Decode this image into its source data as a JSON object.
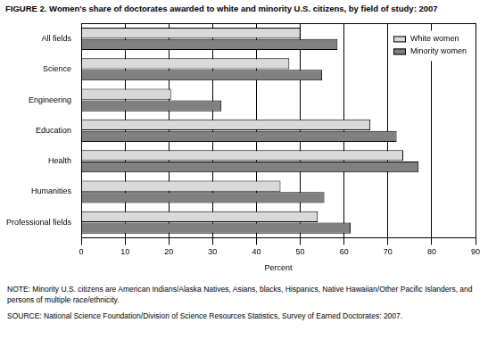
{
  "chart_data": {
    "type": "bar",
    "orientation": "horizontal",
    "title": "FIGURE 2.  Women's share of doctorates awarded to white and minority U.S. citizens, by field of study: 2007",
    "x_label": "Percent",
    "categories": [
      "All fields",
      "Science",
      "Engineering",
      "Education",
      "Health",
      "Humanities",
      "Professional fields"
    ],
    "series": [
      {
        "name": "White women",
        "color": "#d9d9d9",
        "values": [
          50,
          47.5,
          20.5,
          66,
          73.5,
          45.5,
          54
        ]
      },
      {
        "name": "Minority women",
        "color": "#808080",
        "values": [
          58.5,
          55,
          32,
          72,
          77,
          55.5,
          61.5
        ]
      }
    ],
    "xlim": [
      0,
      90
    ],
    "xticks": [
      0,
      10,
      20,
      30,
      40,
      50,
      60,
      70,
      80,
      90
    ],
    "grid": true,
    "legend": "top-right",
    "note": "NOTE:  Minority U.S. citizens are American Indians/Alaska Natives, Asians, blacks, Hispanics, Native Hawaiian/Other Pacific Islanders, and persons of multiple race/ethnicity.",
    "source": "SOURCE:  National Science Foundation/Division of Science Resources Statistics, Survey of Earned Doctorates: 2007."
  }
}
